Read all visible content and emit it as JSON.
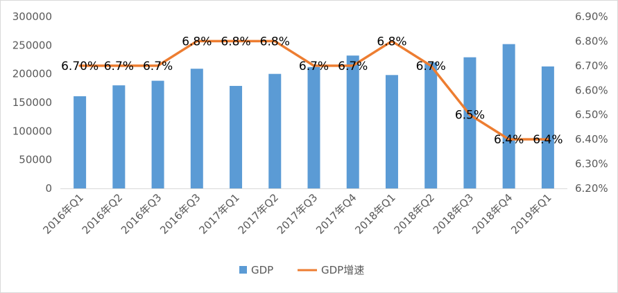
{
  "chart_data": {
    "type": "bar",
    "title": "",
    "categories": [
      "2016年Q1",
      "2016年Q2",
      "2016年Q3",
      "2016年Q3",
      "2017年Q1",
      "2017年Q2",
      "2017年Q3",
      "2017年Q4",
      "2018年Q1",
      "2018年Q2",
      "2018年Q3",
      "2018年Q4",
      "2019年Q1"
    ],
    "series": [
      {
        "name": "GDP",
        "type": "bar",
        "axis": "left",
        "color": "#5b9bd5",
        "values": [
          161000,
          180000,
          188000,
          209000,
          179000,
          200000,
          212000,
          232000,
          198000,
          220000,
          229000,
          252000,
          213000
        ]
      },
      {
        "name": "GDP增速",
        "type": "line",
        "axis": "right",
        "color": "#ed7d31",
        "values": [
          6.7,
          6.7,
          6.7,
          6.8,
          6.8,
          6.8,
          6.7,
          6.7,
          6.8,
          6.7,
          6.5,
          6.4,
          6.4
        ],
        "labels": [
          "6.70%",
          "6.7%",
          "6.7%",
          "6.8%",
          "6.8%",
          "6.8%",
          "6.7%",
          "6.7%",
          "6.8%",
          "6.7%",
          "6.5%",
          "6.4%",
          "6.4%"
        ]
      }
    ],
    "y_left": {
      "min": 0,
      "max": 300000,
      "step": 50000,
      "ticks": [
        "0",
        "50000",
        "100000",
        "150000",
        "200000",
        "250000",
        "300000"
      ]
    },
    "y_right": {
      "min": 6.2,
      "max": 6.9,
      "step": 0.1,
      "ticks": [
        "6.20%",
        "6.30%",
        "6.40%",
        "6.50%",
        "6.60%",
        "6.70%",
        "6.80%",
        "6.90%"
      ]
    },
    "grid": false,
    "legend_position": "bottom"
  }
}
